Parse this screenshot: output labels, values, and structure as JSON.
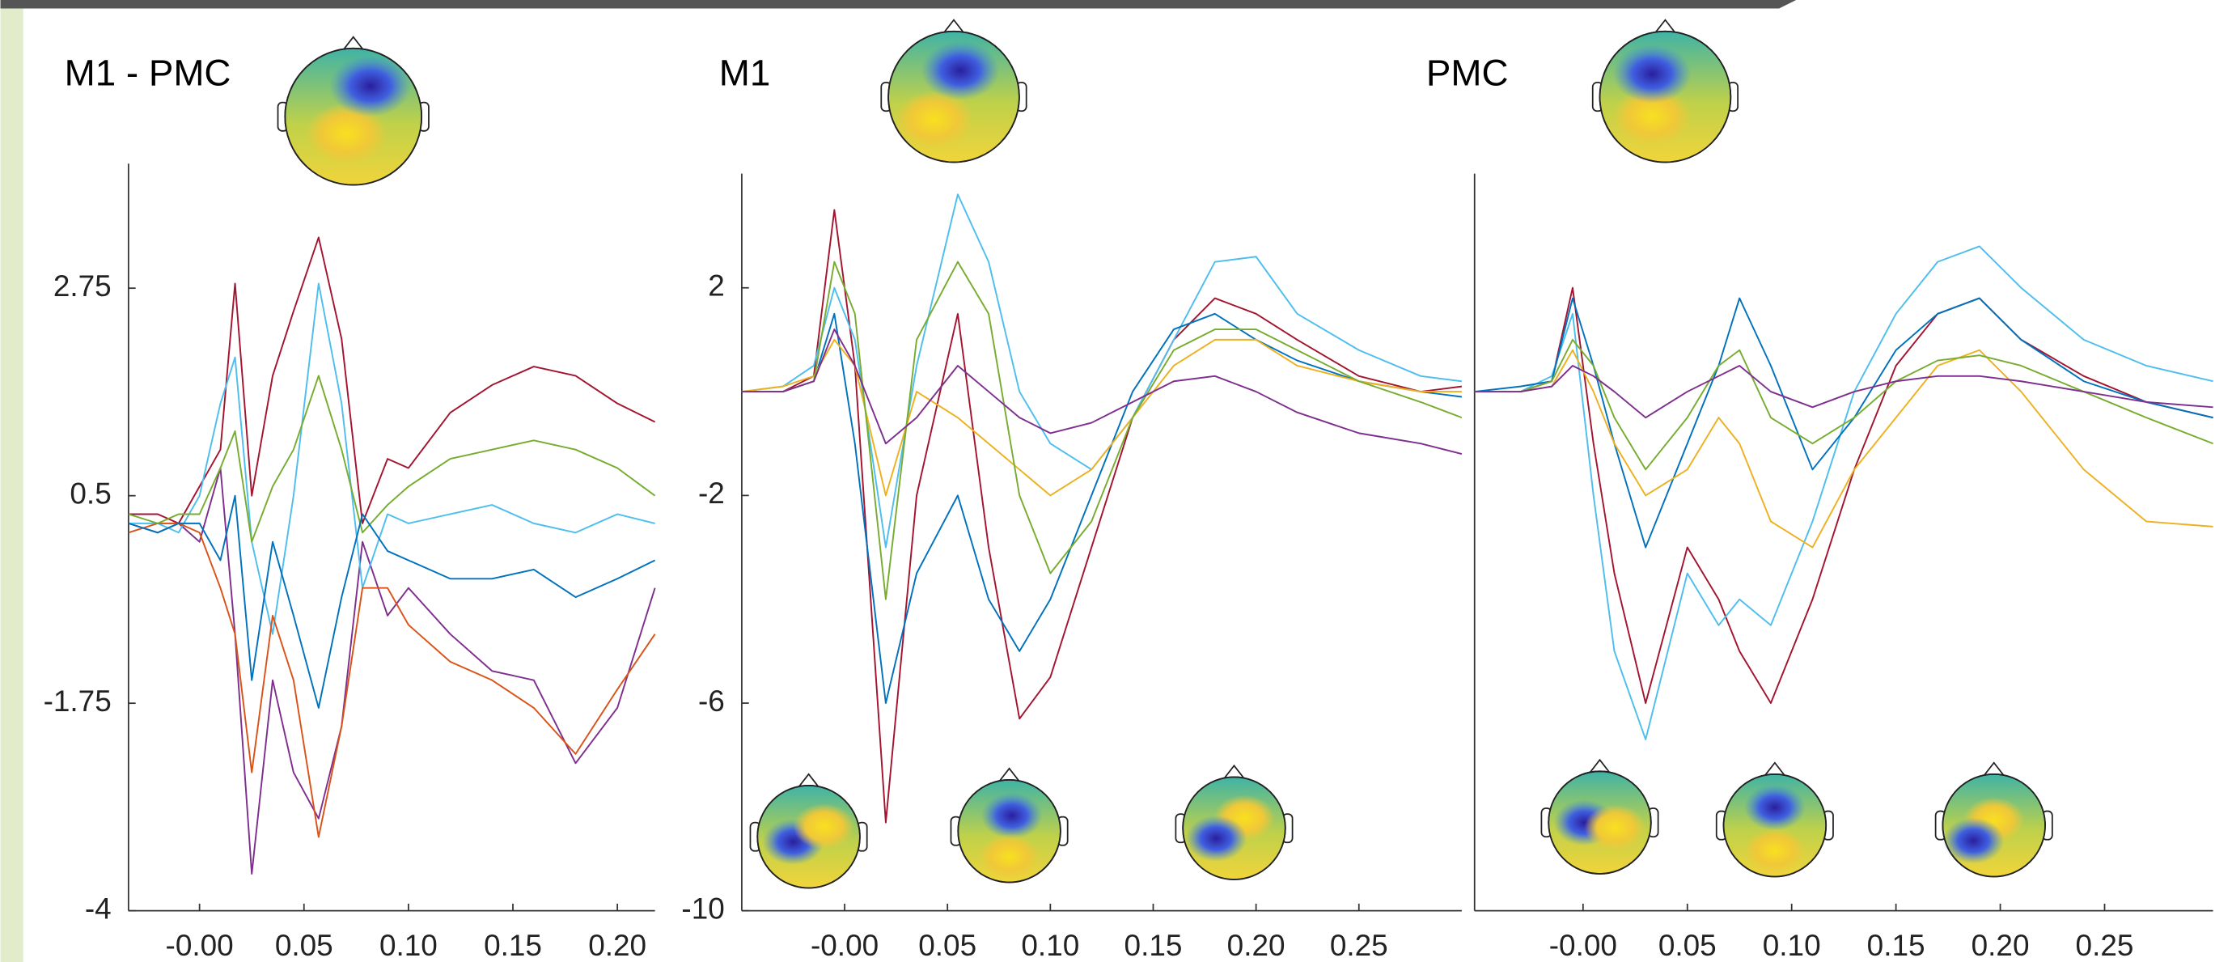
{
  "chart_data": [
    {
      "type": "line",
      "title": "M1 - PMC",
      "x": [
        -0.034,
        -0.02,
        -0.01,
        0,
        0.01,
        0.017,
        0.025,
        0.035,
        0.045,
        0.057,
        0.068,
        0.078,
        0.09,
        0.1,
        0.12,
        0.14,
        0.16,
        0.18,
        0.2,
        0.218
      ],
      "series": [
        {
          "color": "#7e2f8e",
          "values": [
            0.2,
            0.1,
            0.2,
            0.0,
            0.8,
            -1.0,
            -3.6,
            -1.5,
            -2.5,
            -3.0,
            -2.0,
            0.0,
            -0.8,
            -0.5,
            -1.0,
            -1.4,
            -1.5,
            -2.4,
            -1.8,
            -0.5
          ]
        },
        {
          "color": "#a2142f",
          "values": [
            0.3,
            0.3,
            0.2,
            0.6,
            1.0,
            2.8,
            0.5,
            1.8,
            2.5,
            3.3,
            2.2,
            0.2,
            0.9,
            0.8,
            1.4,
            1.7,
            1.9,
            1.8,
            1.5,
            1.3
          ]
        },
        {
          "color": "#4dbeee",
          "values": [
            0.2,
            0.2,
            0.1,
            0.5,
            1.5,
            2.0,
            0.0,
            -1.0,
            0.5,
            2.8,
            1.5,
            -0.5,
            0.3,
            0.2,
            0.3,
            0.4,
            0.2,
            0.1,
            0.3,
            0.2
          ]
        },
        {
          "color": "#d95319",
          "values": [
            0.1,
            0.2,
            0.2,
            0.1,
            -0.5,
            -1.0,
            -2.5,
            -0.8,
            -1.5,
            -3.2,
            -2.0,
            -0.5,
            -0.5,
            -0.9,
            -1.3,
            -1.5,
            -1.8,
            -2.3,
            -1.6,
            -1.0
          ]
        },
        {
          "color": "#77ac30",
          "values": [
            0.3,
            0.2,
            0.3,
            0.3,
            0.8,
            1.2,
            0.0,
            0.6,
            1.0,
            1.8,
            1.0,
            0.1,
            0.4,
            0.6,
            0.9,
            1.0,
            1.1,
            1.0,
            0.8,
            0.5
          ]
        },
        {
          "color": "#0072bd",
          "values": [
            0.2,
            0.1,
            0.2,
            0.2,
            -0.2,
            0.5,
            -1.5,
            0.0,
            -0.8,
            -1.8,
            -0.6,
            0.3,
            -0.1,
            -0.2,
            -0.4,
            -0.4,
            -0.3,
            -0.6,
            -0.4,
            -0.2
          ]
        }
      ],
      "xlim": [
        -0.034,
        0.218
      ],
      "ylim": [
        -4,
        4.1
      ],
      "xticks": [
        {
          "value": 0,
          "label": "-0.00"
        },
        0.05,
        {
          "value": 0.1,
          "label": "0.10"
        },
        0.15,
        {
          "value": 0.2,
          "label": "0.20"
        }
      ],
      "yticks": [
        -4,
        -1.75,
        0.5,
        2.75
      ]
    },
    {
      "type": "line",
      "title": "M1",
      "x": [
        -0.05,
        -0.03,
        -0.015,
        -0.005,
        0.005,
        0.02,
        0.035,
        0.055,
        0.07,
        0.085,
        0.1,
        0.12,
        0.14,
        0.16,
        0.18,
        0.2,
        0.22,
        0.25,
        0.28,
        0.3
      ],
      "series": [
        {
          "color": "#a2142f",
          "values": [
            0,
            0,
            0.3,
            3.5,
            0.5,
            -8.3,
            -2.0,
            1.5,
            -3.0,
            -6.3,
            -5.5,
            -3.0,
            -0.5,
            1.0,
            1.8,
            1.5,
            1.0,
            0.3,
            0.0,
            0.1
          ]
        },
        {
          "color": "#4dbeee",
          "values": [
            0,
            0.1,
            0.5,
            2.0,
            1.0,
            -3.0,
            0.5,
            3.8,
            2.5,
            0.0,
            -1.0,
            -1.5,
            -0.5,
            1.0,
            2.5,
            2.6,
            1.5,
            0.8,
            0.3,
            0.2
          ]
        },
        {
          "color": "#0072bd",
          "values": [
            0,
            0,
            0.2,
            1.5,
            -1.0,
            -6.0,
            -3.5,
            -2.0,
            -4.0,
            -5.0,
            -4.0,
            -2.0,
            0.0,
            1.2,
            1.5,
            1.0,
            0.6,
            0.2,
            0.0,
            -0.1
          ]
        },
        {
          "color": "#edb120",
          "values": [
            0,
            0.1,
            0.3,
            1.0,
            0.5,
            -2.0,
            0.0,
            -0.5,
            -1.0,
            -1.5,
            -2.0,
            -1.5,
            -0.5,
            0.5,
            1.0,
            1.0,
            0.5,
            0.2,
            0.0,
            0.0
          ]
        },
        {
          "color": "#77ac30",
          "values": [
            0,
            0,
            0.2,
            2.5,
            1.5,
            -4.0,
            1.0,
            2.5,
            1.5,
            -2.0,
            -3.5,
            -2.5,
            -0.5,
            0.8,
            1.2,
            1.2,
            0.8,
            0.2,
            -0.2,
            -0.5
          ]
        },
        {
          "color": "#7e2f8e",
          "values": [
            0,
            0,
            0.2,
            1.2,
            0.5,
            -1.0,
            -0.5,
            0.5,
            0.0,
            -0.5,
            -0.8,
            -0.6,
            -0.2,
            0.2,
            0.3,
            0.0,
            -0.4,
            -0.8,
            -1.0,
            -1.2
          ]
        }
      ],
      "xlim": [
        -0.05,
        0.3
      ],
      "ylim": [
        -10,
        4.2
      ],
      "xticks": [
        {
          "value": 0,
          "label": "-0.00"
        },
        0.05,
        {
          "value": 0.1,
          "label": "0.10"
        },
        0.15,
        {
          "value": 0.2,
          "label": "0.20"
        },
        0.25
      ],
      "yticks": [
        -10,
        -6,
        -2,
        2
      ]
    },
    {
      "type": "line",
      "title": "PMC",
      "x": [
        -0.052,
        -0.03,
        -0.015,
        -0.005,
        0.005,
        0.015,
        0.03,
        0.05,
        0.065,
        0.075,
        0.09,
        0.11,
        0.13,
        0.15,
        0.17,
        0.19,
        0.21,
        0.24,
        0.27,
        0.302
      ],
      "series": [
        {
          "color": "#a2142f",
          "values": [
            0,
            0,
            0.2,
            2.0,
            -1.0,
            -3.5,
            -6.0,
            -3.0,
            -4.0,
            -5.0,
            -6.0,
            -4.0,
            -1.5,
            0.5,
            1.5,
            1.8,
            1.0,
            0.3,
            -0.2,
            -0.5
          ]
        },
        {
          "color": "#4dbeee",
          "values": [
            0,
            0,
            0.3,
            1.5,
            -2.0,
            -5.0,
            -6.7,
            -3.5,
            -4.5,
            -4.0,
            -4.5,
            -2.5,
            0.0,
            1.5,
            2.5,
            2.8,
            2.0,
            1.0,
            0.5,
            0.2
          ]
        },
        {
          "color": "#0072bd",
          "values": [
            0,
            0.1,
            0.2,
            1.8,
            0.5,
            -1.0,
            -3.0,
            -1.0,
            0.5,
            1.8,
            0.5,
            -1.5,
            -0.5,
            0.8,
            1.5,
            1.8,
            1.0,
            0.2,
            -0.2,
            -0.5
          ]
        },
        {
          "color": "#edb120",
          "values": [
            0,
            0,
            0.1,
            0.8,
            0.0,
            -1.0,
            -2.0,
            -1.5,
            -0.5,
            -1.0,
            -2.5,
            -3.0,
            -1.5,
            -0.5,
            0.5,
            0.8,
            0.0,
            -1.5,
            -2.5,
            -2.6
          ]
        },
        {
          "color": "#77ac30",
          "values": [
            0,
            0,
            0.2,
            1.0,
            0.5,
            -0.5,
            -1.5,
            -0.5,
            0.5,
            0.8,
            -0.5,
            -1.0,
            -0.5,
            0.2,
            0.6,
            0.7,
            0.5,
            0.0,
            -0.5,
            -1.0
          ]
        },
        {
          "color": "#7e2f8e",
          "values": [
            0,
            0,
            0.1,
            0.5,
            0.3,
            0.0,
            -0.5,
            0.0,
            0.3,
            0.5,
            0.0,
            -0.3,
            0.0,
            0.2,
            0.3,
            0.3,
            0.2,
            0.0,
            -0.2,
            -0.3
          ]
        }
      ],
      "xlim": [
        -0.052,
        0.302
      ],
      "ylim": [
        -10,
        4.2
      ],
      "xticks": [
        {
          "value": 0,
          "label": "-0.00"
        },
        0.05,
        {
          "value": 0.1,
          "label": "0.10"
        },
        0.15,
        {
          "value": 0.2,
          "label": "0.20"
        },
        0.25
      ]
    }
  ]
}
